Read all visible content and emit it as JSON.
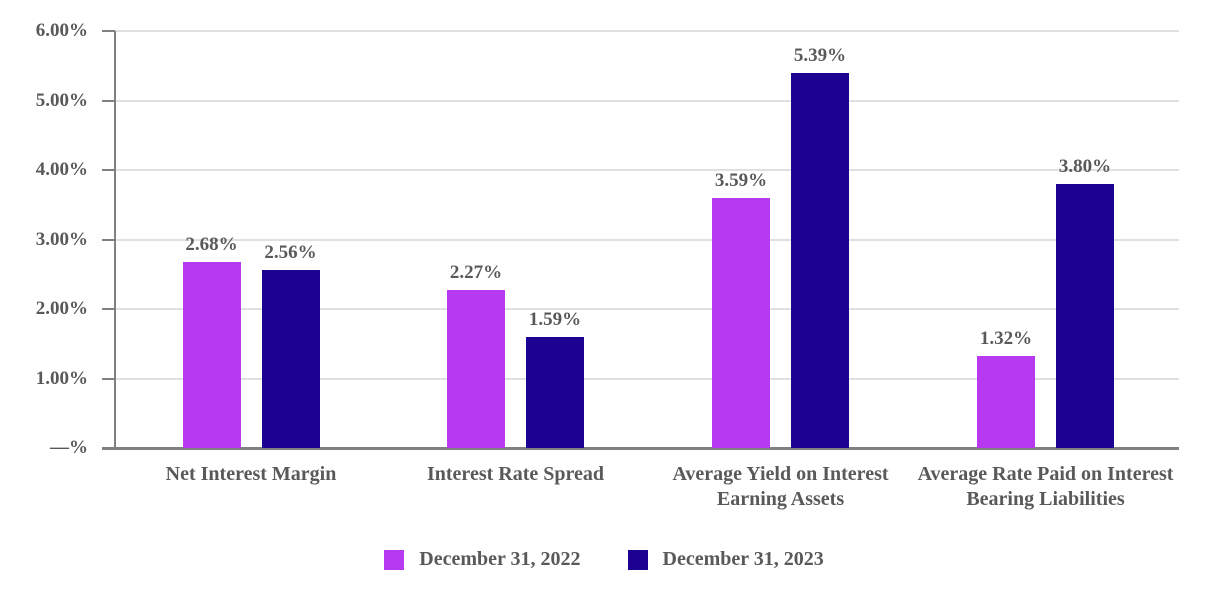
{
  "chart_data": {
    "type": "bar",
    "title": "",
    "categories": [
      "Net Interest Margin",
      "Interest Rate Spread",
      "Average Yield on Interest Earning Assets",
      "Average Rate Paid on Interest Bearing Liabilities"
    ],
    "series": [
      {
        "name": "December 31, 2022",
        "color": "#B83AF0",
        "values": [
          2.68,
          2.27,
          3.59,
          1.32
        ],
        "data_labels": [
          "2.68%",
          "2.27%",
          "3.59%",
          "1.32%"
        ]
      },
      {
        "name": "December 31, 2023",
        "color": "#1D0191",
        "values": [
          2.56,
          1.59,
          5.39,
          3.8
        ],
        "data_labels": [
          "2.56%",
          "1.59%",
          "5.39%",
          "3.80%"
        ]
      }
    ],
    "y_axis": {
      "min": 0,
      "max": 6,
      "tick_values": [
        0,
        1,
        2,
        3,
        4,
        5,
        6
      ],
      "tick_labels": [
        "—%",
        "1.00%",
        "2.00%",
        "3.00%",
        "4.00%",
        "5.00%",
        "6.00%"
      ]
    },
    "grid": true,
    "legend_position": "bottom",
    "colors": {
      "text": "#595959",
      "gridline": "#E0E0E0",
      "axis": "#808080"
    }
  }
}
